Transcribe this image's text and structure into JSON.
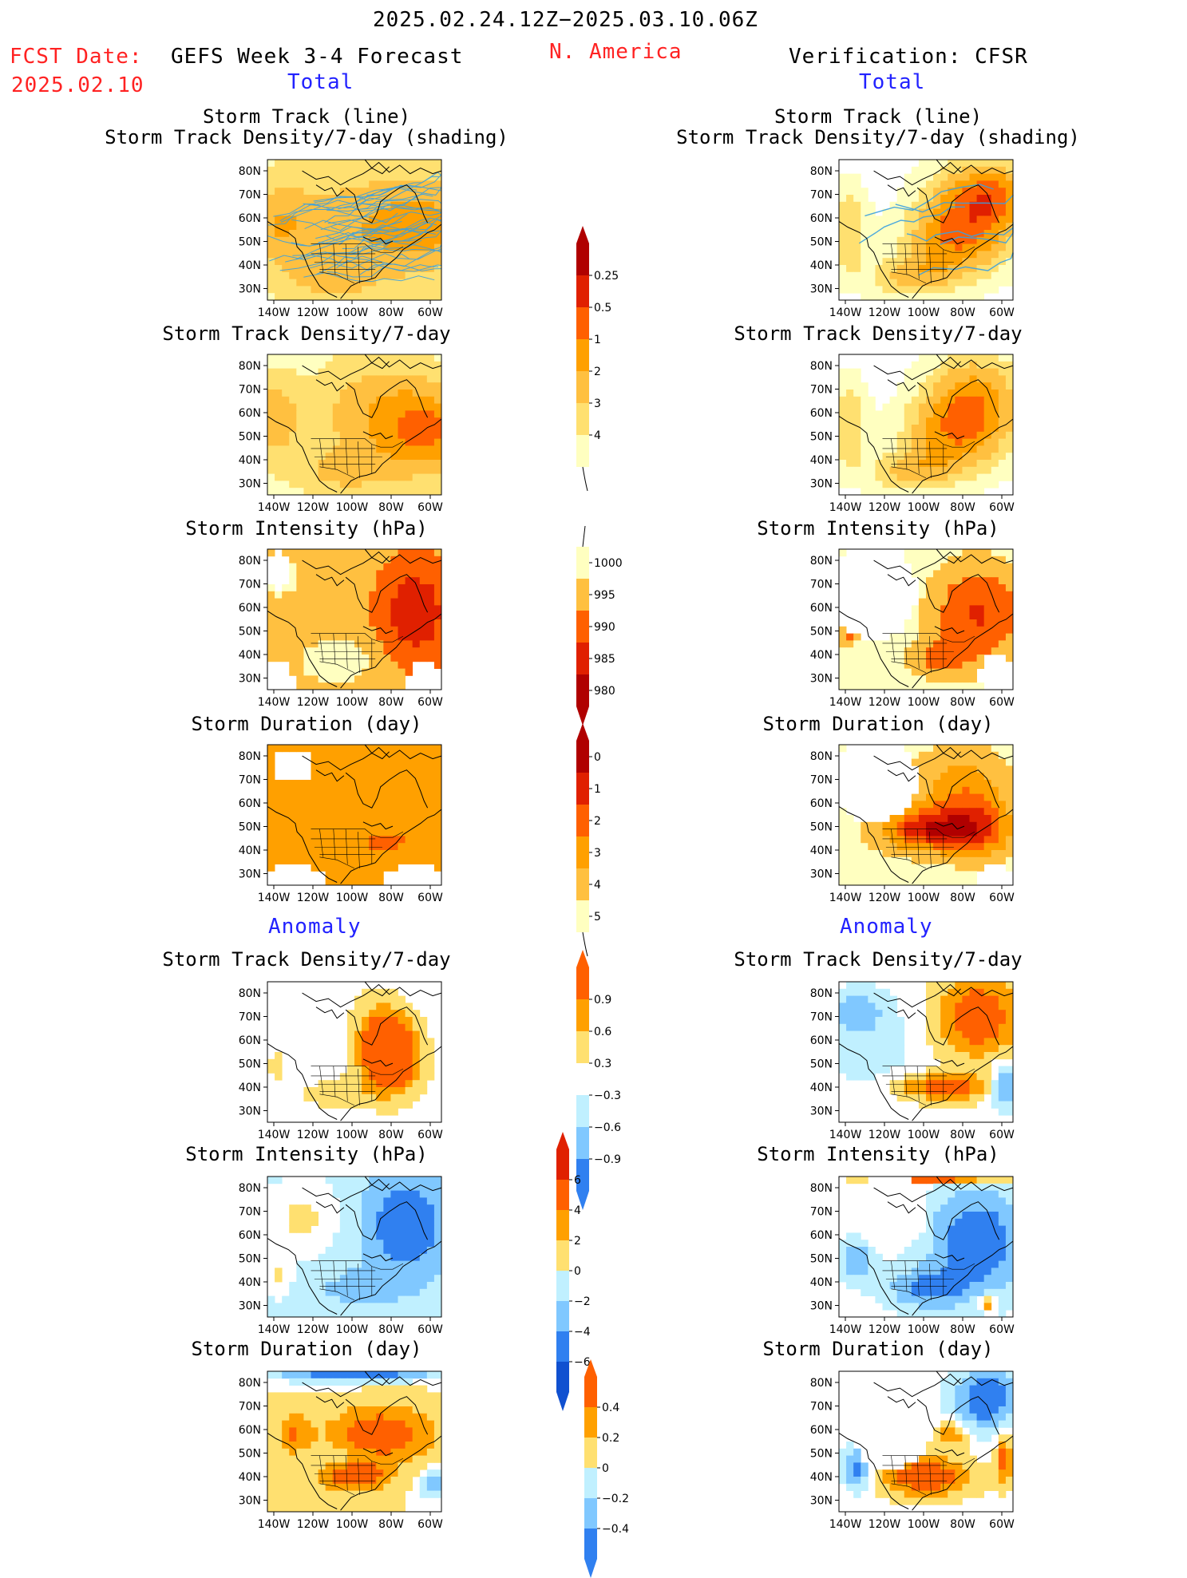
{
  "header": {
    "period": "2025.02.24.12Z−2025.03.10.06Z",
    "fcst_label": "FCST Date:",
    "fcst_date": "2025.02.10",
    "forecast_title": "GEFS Week 3-4 Forecast",
    "region": "N. America",
    "verification_title": "Verification: CFSR"
  },
  "sections": {
    "total_left": "Total",
    "total_right": "Total",
    "anomaly_left": "Anomaly",
    "anomaly_right": "Anomaly"
  },
  "panel_titles": {
    "track_line": "Storm Track (line)",
    "track_shading": "Storm Track Density/7-day (shading)",
    "density": "Storm Track Density/7-day",
    "intensity": "Storm Intensity (hPa)",
    "duration": "Storm Duration (day)"
  },
  "axes": {
    "lat_labels": [
      "80N",
      "70N",
      "60N",
      "50N",
      "40N",
      "30N"
    ],
    "lon_labels": [
      "140W",
      "120W",
      "100W",
      "80W",
      "60W"
    ]
  },
  "colorbars": {
    "density_total": [
      "0.25",
      "0.5",
      "1",
      "2",
      "3",
      "4"
    ],
    "intensity_total": [
      "1000",
      "995",
      "990",
      "985",
      "980"
    ],
    "duration_total": [
      "0",
      "1",
      "2",
      "3",
      "4",
      "5"
    ],
    "density_anom": [
      "0.9",
      "0.6",
      "0.3",
      "−0.3",
      "−0.6",
      "−0.9"
    ],
    "intensity_anom": [
      "6",
      "4",
      "2",
      "0",
      "−2",
      "−4",
      "−6"
    ],
    "duration_anom": [
      "0.4",
      "0.2",
      "0",
      "−0.2",
      "−0.4"
    ]
  },
  "colors": {
    "yellow_light": "#ffffc0",
    "yellow": "#ffe070",
    "orange_light": "#ffc040",
    "orange": "#ffa000",
    "orange_dark": "#ff6000",
    "red": "#e02000",
    "dark_red": "#b00000",
    "blue_light": "#c0f0ff",
    "blue": "#80c8ff",
    "blue_mid": "#3080f0",
    "blue_dark": "#1050d0",
    "track_line": "#3aa0e0"
  }
}
